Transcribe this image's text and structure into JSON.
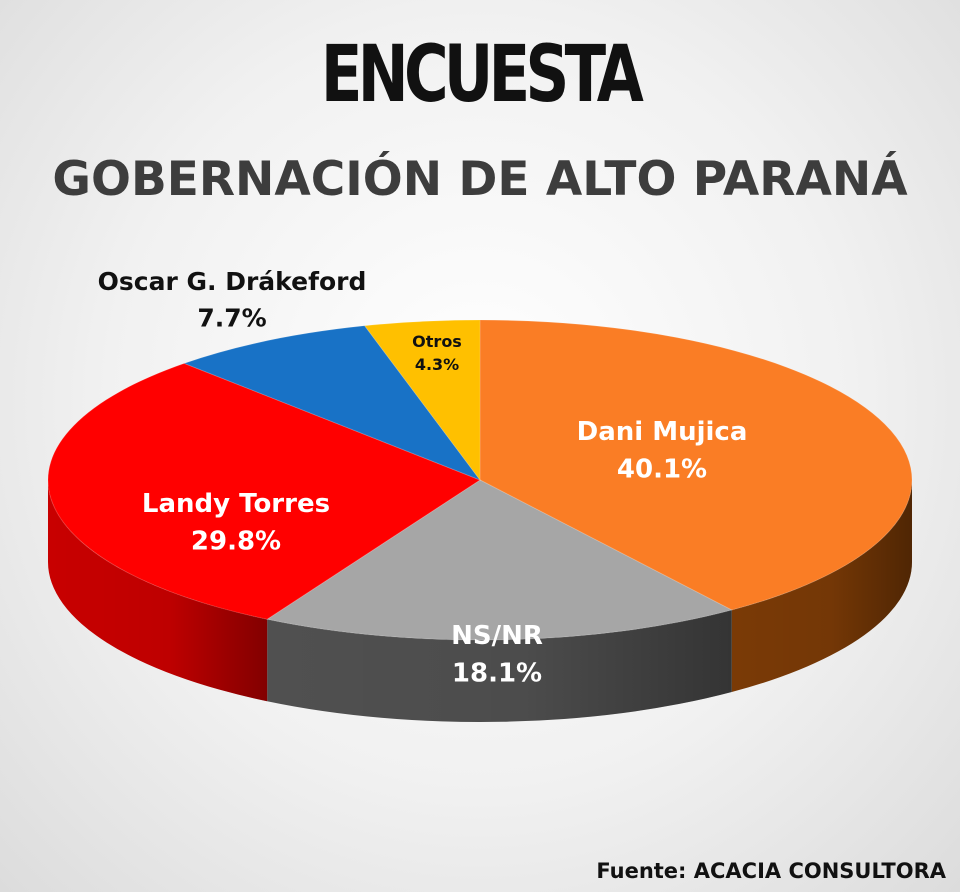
{
  "title": "ENCUESTA",
  "subtitle": "GOBERNACIÓN DE ALTO PARANÁ",
  "source": "Fuente: ACACIA CONSULTORA",
  "chart_data": {
    "type": "pie",
    "title": "GOBERNACIÓN DE ALTO PARANÁ",
    "slices": [
      {
        "name": "Dani Mujica",
        "value": 40.1,
        "label": "40.1%",
        "color": "#fa7d25",
        "side": "#7a3a06"
      },
      {
        "name": "NS/NR",
        "value": 18.1,
        "label": "18.1%",
        "color": "#a6a6a6",
        "side": "#505050"
      },
      {
        "name": "Landy Torres",
        "value": 29.8,
        "label": "29.8%",
        "color": "#ff0000",
        "side": "#c80000"
      },
      {
        "name": "Oscar G. Drákeford",
        "value": 7.7,
        "label": "7.7%",
        "color": "#1872c6",
        "side": "#0b3d6e"
      },
      {
        "name": "Otros",
        "value": 4.3,
        "label": "4.3%",
        "color": "#ffc000",
        "side": "#a07800"
      }
    ]
  }
}
